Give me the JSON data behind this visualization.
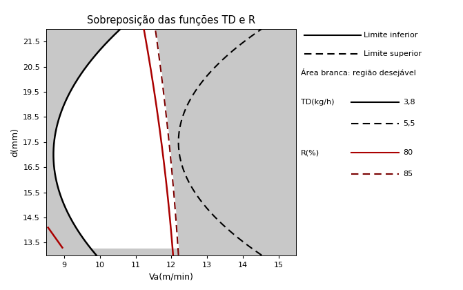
{
  "title": "Sobreposição das funções TD e R",
  "xlabel": "Va(m/min)",
  "ylabel": "d(mm)",
  "xlim": [
    8.5,
    15.5
  ],
  "ylim": [
    13.0,
    22.0
  ],
  "xticks": [
    9,
    10,
    11,
    12,
    13,
    14,
    15
  ],
  "yticks": [
    13.5,
    14.5,
    15.5,
    16.5,
    17.5,
    18.5,
    19.5,
    20.5,
    21.5
  ],
  "bg_color": "#c8c8c8",
  "white_color": "#ffffff",
  "td_solid_color": "#000000",
  "td_dashed_color": "#000000",
  "r_solid_color": "#aa0000",
  "r_dashed_color": "#7a0000",
  "legend_solid_label": "Limite inferior",
  "legend_dashed_label": "Limite superior",
  "legend_area_label": "Área branca: região desejável",
  "td_label": "TD(kg/h)",
  "r_label": "R(%)",
  "td_solid_val": "3,8",
  "td_dashed_val": "5,5",
  "r_solid_val": "80",
  "r_dashed_val": "85",
  "td_solid_vertex_va": 8.7,
  "td_solid_vertex_d": 17.0,
  "td_solid_coeff": 0.075,
  "td_dashed_vertex_va": 12.2,
  "td_dashed_vertex_d": 17.5,
  "td_dashed_coeff": 0.115,
  "r_solid_p0": 12.05,
  "r_solid_p1": -0.055,
  "r_solid_p2": -0.004,
  "r_dashed_p0": 12.2,
  "r_dashed_p1": -0.045,
  "r_dashed_p2": -0.003,
  "r_small_va0": 8.95,
  "r_small_va1": 8.55,
  "r_small_d0": 13.3,
  "r_small_d1": 14.1
}
